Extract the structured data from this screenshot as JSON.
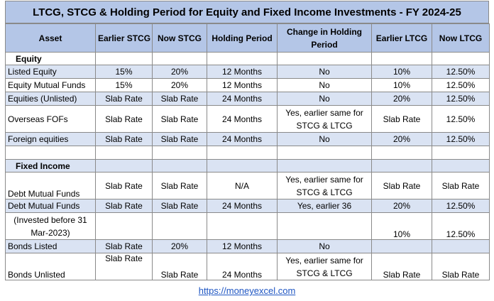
{
  "title": "LTCG, STCG & Holding Period for Equity and Fixed Income Investments - FY 2024-25",
  "headers": [
    "Asset",
    "Earlier STCG",
    "Now STCG",
    "Holding Period",
    "Change in Holding Period",
    "Earlier LTCG",
    "Now LTCG"
  ],
  "sections": {
    "equity": "Equity",
    "fixed_income": "Fixed Income"
  },
  "rows": {
    "listed_equity": [
      "Listed Equity",
      "15%",
      "20%",
      "12 Months",
      "No",
      "10%",
      "12.50%"
    ],
    "equity_mf": [
      "Equity Mutual Funds",
      "15%",
      "20%",
      "12 Months",
      "No",
      "10%",
      "12.50%"
    ],
    "unlisted": [
      "Equities (Unlisted)",
      "Slab Rate",
      "Slab Rate",
      "24 Months",
      "No",
      "20%",
      "12.50%"
    ],
    "overseas_fof": [
      "Overseas FOFs",
      "Slab Rate",
      "Slab Rate",
      "24 Months",
      "Yes, earlier same for STCG & LTCG",
      "Slab Rate",
      "12.50%"
    ],
    "foreign_eq": [
      "Foreign equities",
      "Slab Rate",
      "Slab Rate",
      "24 Months",
      "No",
      "20%",
      "12.50%"
    ],
    "debt_mf_1": [
      "Debt Mutual Funds",
      "Slab Rate",
      "Slab Rate",
      "N/A",
      "Yes, earlier same for STCG & LTCG",
      "Slab Rate",
      "Slab Rate"
    ],
    "debt_mf_2": [
      "Debt Mutual Funds",
      "Slab Rate",
      "Slab Rate",
      "24 Months",
      "Yes, earlier 36",
      "20%",
      "12.50%"
    ],
    "invested_before": [
      "(Invested before 31 Mar-2023)",
      "",
      "",
      "",
      "",
      "10%",
      "12.50%"
    ],
    "bonds_listed": [
      "Bonds Listed",
      "Slab Rate",
      "20%",
      "12 Months",
      "No",
      "",
      ""
    ],
    "bonds_unlisted": [
      "Bonds Unlisted",
      "Slab Rate",
      "Slab Rate",
      "24 Months",
      "Yes, earlier same for STCG & LTCG",
      "Slab Rate",
      "Slab Rate"
    ]
  },
  "footer_link": "https://moneyexcel.com",
  "colors": {
    "header_bg": "#b4c6e7",
    "band_bg": "#dae3f3",
    "link": "#1f56c3"
  }
}
